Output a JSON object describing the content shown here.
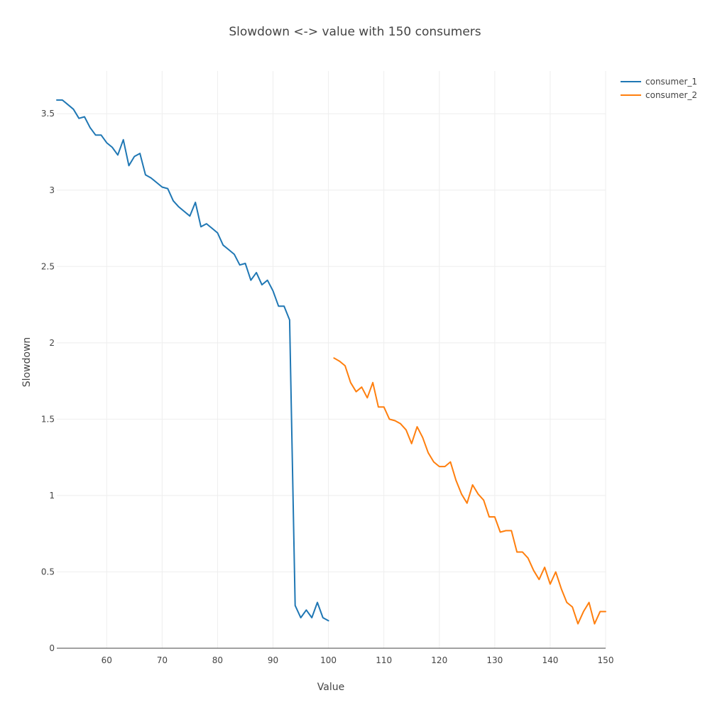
{
  "chart_data": {
    "type": "line",
    "title": "Slowdown <-> value with 150 consumers",
    "xlabel": "Value",
    "ylabel": "Slowdown",
    "xlim": [
      51,
      150
    ],
    "ylim": [
      0,
      3.78
    ],
    "xticks": [
      60,
      70,
      80,
      90,
      100,
      110,
      120,
      130,
      140,
      150
    ],
    "yticks": [
      0,
      0.5,
      1,
      1.5,
      2,
      2.5,
      3,
      3.5
    ],
    "ytick_labels": [
      "0",
      "0.5",
      "1",
      "1.5",
      "2",
      "2.5",
      "3",
      "3.5"
    ],
    "grid": true,
    "legend_position": "top-right",
    "series": [
      {
        "name": "consumer_1",
        "color": "#1f77b4",
        "x": [
          51,
          52,
          53,
          54,
          55,
          56,
          57,
          58,
          59,
          60,
          61,
          62,
          63,
          64,
          65,
          66,
          67,
          68,
          69,
          70,
          71,
          72,
          73,
          74,
          75,
          76,
          77,
          78,
          79,
          80,
          81,
          82,
          83,
          84,
          85,
          86,
          87,
          88,
          89,
          90,
          91,
          92,
          93,
          94,
          95,
          96,
          97,
          98,
          99,
          100
        ],
        "y": [
          3.59,
          3.59,
          3.56,
          3.53,
          3.47,
          3.48,
          3.41,
          3.36,
          3.36,
          3.31,
          3.28,
          3.23,
          3.33,
          3.16,
          3.22,
          3.24,
          3.1,
          3.08,
          3.05,
          3.02,
          3.01,
          2.93,
          2.89,
          2.86,
          2.83,
          2.92,
          2.76,
          2.78,
          2.75,
          2.72,
          2.64,
          2.61,
          2.58,
          2.51,
          2.52,
          2.41,
          2.46,
          2.38,
          2.41,
          2.34,
          2.24,
          2.24,
          2.15,
          0.28,
          0.2,
          0.25,
          0.2,
          0.3,
          0.2,
          0.18
        ]
      },
      {
        "name": "consumer_2",
        "color": "#ff7f0e",
        "x": [
          101,
          102,
          103,
          104,
          105,
          106,
          107,
          108,
          109,
          110,
          111,
          112,
          113,
          114,
          115,
          116,
          117,
          118,
          119,
          120,
          121,
          122,
          123,
          124,
          125,
          126,
          127,
          128,
          129,
          130,
          131,
          132,
          133,
          134,
          135,
          136,
          137,
          138,
          139,
          140,
          141,
          142,
          143,
          144,
          145,
          146,
          147,
          148,
          149,
          150
        ],
        "y": [
          1.9,
          1.88,
          1.85,
          1.74,
          1.68,
          1.71,
          1.64,
          1.74,
          1.58,
          1.58,
          1.5,
          1.49,
          1.47,
          1.43,
          1.34,
          1.45,
          1.38,
          1.28,
          1.22,
          1.19,
          1.19,
          1.22,
          1.1,
          1.01,
          0.95,
          1.07,
          1.01,
          0.97,
          0.86,
          0.86,
          0.76,
          0.77,
          0.77,
          0.63,
          0.63,
          0.59,
          0.51,
          0.45,
          0.53,
          0.42,
          0.5,
          0.39,
          0.3,
          0.27,
          0.16,
          0.24,
          0.3,
          0.16,
          0.24,
          0.24
        ]
      }
    ]
  }
}
